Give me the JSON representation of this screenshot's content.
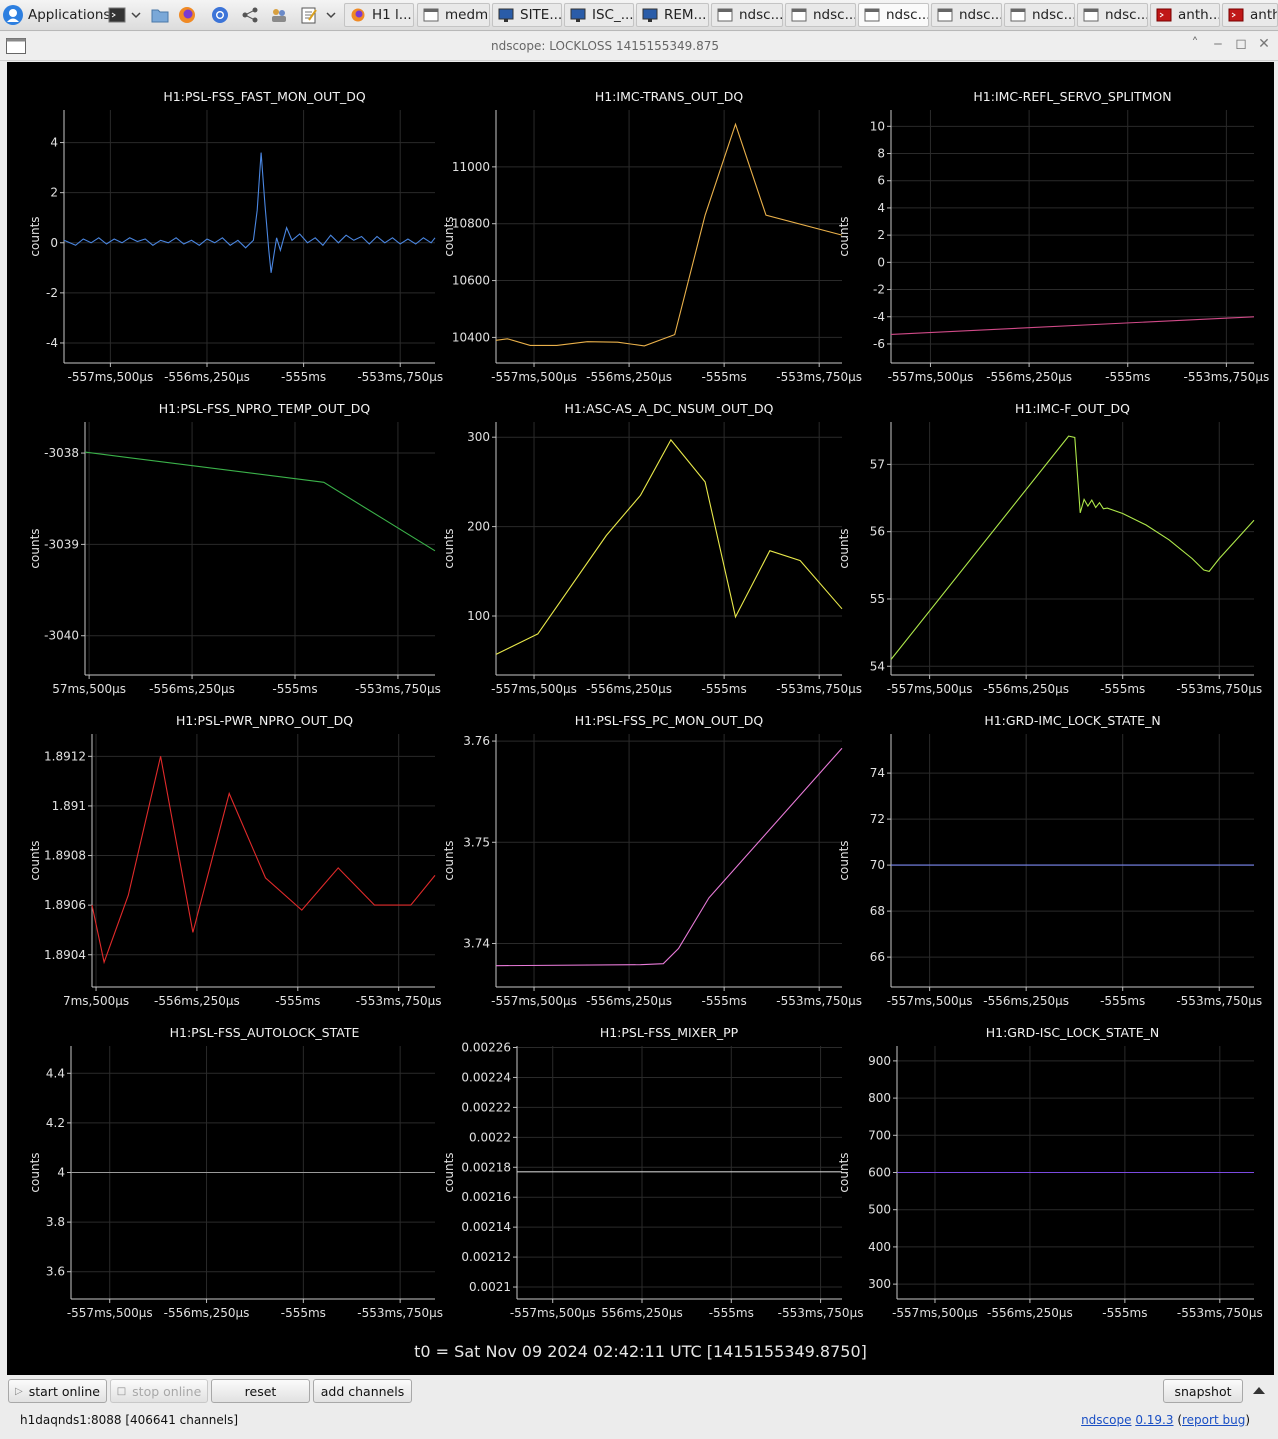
{
  "taskbar": {
    "applications_label": "Applications",
    "tasks": [
      {
        "label": "H1 l...",
        "icon": "firefox-icon",
        "active": false
      },
      {
        "label": "medm",
        "icon": "window-icon",
        "active": false
      },
      {
        "label": "SITE...",
        "icon": "monitor-icon",
        "active": false
      },
      {
        "label": "ISC_...",
        "icon": "monitor-icon",
        "active": false
      },
      {
        "label": "REM...",
        "icon": "monitor-icon",
        "active": false
      },
      {
        "label": "ndsc...",
        "icon": "window-icon",
        "active": false
      },
      {
        "label": "ndsc...",
        "icon": "window-icon",
        "active": false
      },
      {
        "label": "ndsc...",
        "icon": "window-icon",
        "active": true
      },
      {
        "label": "ndsc...",
        "icon": "window-icon",
        "active": false
      },
      {
        "label": "ndsc...",
        "icon": "window-icon",
        "active": false
      },
      {
        "label": "ndsc...",
        "icon": "window-icon",
        "active": false
      },
      {
        "label": "anth...",
        "icon": "terminal-icon",
        "active": false
      },
      {
        "label": "anth",
        "icon": "terminal-icon",
        "active": false
      }
    ]
  },
  "window": {
    "title": "ndscope: LOCKLOSS 1415155349.875"
  },
  "t0_label": "t0 = Sat Nov 09 2024 02:42:11 UTC [1415155349.8750]",
  "buttons": {
    "start_online": "start online",
    "stop_online": "stop online",
    "reset": "reset",
    "add_channels": "add channels",
    "snapshot": "snapshot"
  },
  "status": {
    "server": "h1daqnds1:8088  [406641 channels]"
  },
  "version": {
    "app": "ndscope",
    "number": "0.19.3",
    "report": "report bug"
  },
  "chart_data": [
    {
      "type": "line",
      "title": "H1:PSL-FSS_FAST_MON_OUT_DQ",
      "ylabel": "counts",
      "color": "#4a86e0",
      "xlim": [
        -558.1,
        -553.3
      ],
      "ylim": [
        -4.8,
        5.3
      ],
      "y_ticks": [
        4,
        2,
        0,
        -2,
        -4
      ],
      "y_tick_labels": [
        "4",
        "2",
        "0",
        "-2",
        "-4"
      ],
      "x_ticks": [
        -557.5,
        -556.25,
        -555.0,
        -553.75
      ],
      "x_tick_labels": [
        "-557ms,500μs",
        "-556ms,250μs",
        "-555ms",
        "-553ms,750μs"
      ],
      "series": [
        {
          "points": [
            [
              -558.1,
              0.1
            ],
            [
              -557.95,
              -0.1
            ],
            [
              -557.85,
              0.15
            ],
            [
              -557.75,
              0.0
            ],
            [
              -557.65,
              0.2
            ],
            [
              -557.55,
              -0.05
            ],
            [
              -557.45,
              0.15
            ],
            [
              -557.35,
              0.0
            ],
            [
              -557.25,
              0.2
            ],
            [
              -557.15,
              0.05
            ],
            [
              -557.05,
              0.15
            ],
            [
              -556.95,
              -0.1
            ],
            [
              -556.85,
              0.1
            ],
            [
              -556.75,
              0.0
            ],
            [
              -556.65,
              0.2
            ],
            [
              -556.55,
              -0.05
            ],
            [
              -556.45,
              0.1
            ],
            [
              -556.35,
              -0.1
            ],
            [
              -556.25,
              0.15
            ],
            [
              -556.15,
              0.0
            ],
            [
              -556.05,
              0.2
            ],
            [
              -555.95,
              -0.1
            ],
            [
              -555.85,
              0.1
            ],
            [
              -555.75,
              -0.2
            ],
            [
              -555.65,
              0.1
            ],
            [
              -555.6,
              1.3
            ],
            [
              -555.55,
              3.6
            ],
            [
              -555.5,
              1.5
            ],
            [
              -555.45,
              -0.3
            ],
            [
              -555.42,
              -1.2
            ],
            [
              -555.35,
              0.2
            ],
            [
              -555.3,
              -0.3
            ],
            [
              -555.22,
              0.6
            ],
            [
              -555.15,
              0.1
            ],
            [
              -555.05,
              0.35
            ],
            [
              -554.95,
              0.0
            ],
            [
              -554.85,
              0.2
            ],
            [
              -554.75,
              -0.1
            ],
            [
              -554.65,
              0.3
            ],
            [
              -554.55,
              0.0
            ],
            [
              -554.45,
              0.3
            ],
            [
              -554.35,
              0.1
            ],
            [
              -554.25,
              0.25
            ],
            [
              -554.15,
              -0.05
            ],
            [
              -554.05,
              0.25
            ],
            [
              -553.95,
              0.0
            ],
            [
              -553.85,
              0.2
            ],
            [
              -553.75,
              -0.05
            ],
            [
              -553.65,
              0.15
            ],
            [
              -553.55,
              -0.05
            ],
            [
              -553.45,
              0.2
            ],
            [
              -553.35,
              0.0
            ],
            [
              -553.3,
              0.2
            ]
          ]
        }
      ]
    },
    {
      "type": "line",
      "title": "H1:IMC-TRANS_OUT_DQ",
      "ylabel": "counts",
      "color": "#e9b04a",
      "xlim": [
        -558.0,
        -553.45
      ],
      "ylim": [
        10310,
        11200
      ],
      "y_ticks": [
        11000,
        10800,
        10600,
        10400
      ],
      "y_tick_labels": [
        "11000",
        "10800",
        "10600",
        "10400"
      ],
      "x_ticks": [
        -557.5,
        -556.25,
        -555.0,
        -553.75
      ],
      "x_tick_labels": [
        "-557ms,500μs",
        "-556ms,250μs",
        "-555ms",
        "-553ms,750μs"
      ],
      "series": [
        {
          "points": [
            [
              -558.0,
              10390
            ],
            [
              -557.85,
              10395
            ],
            [
              -557.55,
              10372
            ],
            [
              -557.2,
              10372
            ],
            [
              -556.8,
              10385
            ],
            [
              -556.4,
              10383
            ],
            [
              -556.05,
              10370
            ],
            [
              -555.65,
              10410
            ],
            [
              -555.25,
              10830
            ],
            [
              -554.85,
              11150
            ],
            [
              -554.45,
              10830
            ],
            [
              -553.45,
              10760
            ]
          ]
        }
      ]
    },
    {
      "type": "line",
      "title": "H1:IMC-REFL_SERVO_SPLITMON",
      "ylabel": "counts",
      "color": "#d04a88",
      "xlim": [
        -558.0,
        -553.4
      ],
      "ylim": [
        -7.4,
        11.2
      ],
      "y_ticks": [
        10,
        8,
        6,
        4,
        2,
        0,
        -2,
        -4,
        -6
      ],
      "y_tick_labels": [
        "10",
        "8",
        "6",
        "4",
        "2",
        "0",
        "-2",
        "-4",
        "-6"
      ],
      "x_ticks": [
        -557.5,
        -556.25,
        -555.0,
        -553.75
      ],
      "x_tick_labels": [
        "-557ms,500μs",
        "-556ms,250μs",
        "-555ms",
        "-553ms,750μs"
      ],
      "series": [
        {
          "points": [
            [
              -558.0,
              -5.3
            ],
            [
              -553.4,
              -4.0
            ]
          ]
        }
      ]
    },
    {
      "type": "line",
      "title": "H1:PSL-FSS_NPRO_TEMP_OUT_DQ",
      "ylabel": "counts",
      "color": "#3bb24a",
      "xlim": [
        -557.55,
        -553.3
      ],
      "ylim": [
        -3040.43,
        -3037.66
      ],
      "y_ticks": [
        -3038,
        -3039,
        -3040
      ],
      "y_tick_labels": [
        "-3038",
        "-3039",
        "-3040"
      ],
      "x_ticks": [
        -557.5,
        -556.25,
        -555.0,
        -553.75
      ],
      "x_tick_labels": [
        "57ms,500μs",
        "-556ms,250μs",
        "-555ms",
        "-553ms,750μs"
      ],
      "series": [
        {
          "points": [
            [
              -557.55,
              -3037.99
            ],
            [
              -554.65,
              -3038.32
            ],
            [
              -553.3,
              -3039.07
            ]
          ]
        }
      ]
    },
    {
      "type": "line",
      "title": "H1:ASC-AS_A_DC_NSUM_OUT_DQ",
      "ylabel": "counts",
      "color": "#e8e84a",
      "xlim": [
        -558.0,
        -553.45
      ],
      "ylim": [
        34,
        317
      ],
      "y_ticks": [
        300,
        200,
        100
      ],
      "y_tick_labels": [
        "300",
        "200",
        "100"
      ],
      "x_ticks": [
        -557.5,
        -556.25,
        -555.0,
        -553.75
      ],
      "x_tick_labels": [
        "-557ms,500μs",
        "-556ms,250μs",
        "-555ms",
        "-553ms,750μs"
      ],
      "series": [
        {
          "points": [
            [
              -558.0,
              57
            ],
            [
              -557.45,
              80
            ],
            [
              -556.55,
              190
            ],
            [
              -556.1,
              235
            ],
            [
              -555.7,
              297
            ],
            [
              -555.25,
              250
            ],
            [
              -554.85,
              99
            ],
            [
              -554.4,
              173
            ],
            [
              -554.0,
              162
            ],
            [
              -553.45,
              108
            ]
          ]
        }
      ]
    },
    {
      "type": "line",
      "title": "H1:IMC-F_OUT_DQ",
      "ylabel": "counts",
      "color": "#aee84a",
      "xlim": [
        -558.0,
        -553.3
      ],
      "ylim": [
        53.87,
        57.63
      ],
      "y_ticks": [
        57,
        56,
        55,
        54
      ],
      "y_tick_labels": [
        "57",
        "56",
        "55",
        "54"
      ],
      "x_ticks": [
        -557.5,
        -556.25,
        -555.0,
        -553.75
      ],
      "x_tick_labels": [
        "-557ms,500μs",
        "-556ms,250μs",
        "-555ms",
        "-553ms,750μs"
      ],
      "series": [
        {
          "points": [
            [
              -558.0,
              54.1
            ],
            [
              -555.7,
              57.42
            ],
            [
              -555.62,
              57.4
            ],
            [
              -555.55,
              56.28
            ],
            [
              -555.5,
              56.48
            ],
            [
              -555.45,
              56.38
            ],
            [
              -555.4,
              56.47
            ],
            [
              -555.35,
              56.36
            ],
            [
              -555.3,
              56.43
            ],
            [
              -555.25,
              56.34
            ],
            [
              -555.2,
              56.35
            ],
            [
              -555.0,
              56.27
            ],
            [
              -554.7,
              56.1
            ],
            [
              -554.4,
              55.88
            ],
            [
              -554.1,
              55.6
            ],
            [
              -553.95,
              55.43
            ],
            [
              -553.88,
              55.41
            ],
            [
              -553.75,
              55.6
            ],
            [
              -553.3,
              56.17
            ]
          ]
        }
      ]
    },
    {
      "type": "line",
      "title": "H1:PSL-PWR_NPRO_OUT_DQ",
      "ylabel": "counts",
      "color": "#e02a2a",
      "xlim": [
        -557.55,
        -553.3
      ],
      "ylim": [
        1.89027,
        1.89129
      ],
      "y_ticks": [
        1.8912,
        1.891,
        1.8908,
        1.8906,
        1.8904
      ],
      "y_tick_labels": [
        "1.8912",
        "1.891",
        "1.8908",
        "1.8906",
        "1.8904"
      ],
      "x_ticks": [
        -557.5,
        -556.25,
        -555.0,
        -553.75
      ],
      "x_tick_labels": [
        "7ms,500μs",
        "-556ms,250μs",
        "-555ms",
        "-553ms,750μs"
      ],
      "series": [
        {
          "points": [
            [
              -557.55,
              1.8906
            ],
            [
              -557.4,
              1.89037
            ],
            [
              -557.1,
              1.89064
            ],
            [
              -556.7,
              1.8912
            ],
            [
              -556.3,
              1.89049
            ],
            [
              -555.85,
              1.89105
            ],
            [
              -555.4,
              1.89071
            ],
            [
              -554.95,
              1.89058
            ],
            [
              -554.5,
              1.89075
            ],
            [
              -554.05,
              1.8906
            ],
            [
              -553.6,
              1.8906
            ],
            [
              -553.3,
              1.89072
            ]
          ]
        }
      ]
    },
    {
      "type": "line",
      "title": "H1:PSL-FSS_PC_MON_OUT_DQ",
      "ylabel": "counts",
      "color": "#e87ad8",
      "xlim": [
        -558.0,
        -553.45
      ],
      "ylim": [
        3.7357,
        3.7607
      ],
      "y_ticks": [
        3.76,
        3.75,
        3.74
      ],
      "y_tick_labels": [
        "3.76",
        "3.75",
        "3.74"
      ],
      "x_ticks": [
        -557.5,
        -556.25,
        -555.0,
        -553.75
      ],
      "x_tick_labels": [
        "-557ms,500μs",
        "-556ms,250μs",
        "-555ms",
        "-553ms,750μs"
      ],
      "series": [
        {
          "points": [
            [
              -558.0,
              3.7378
            ],
            [
              -556.1,
              3.7379
            ],
            [
              -555.8,
              3.738
            ],
            [
              -555.6,
              3.7395
            ],
            [
              -555.2,
              3.7445
            ],
            [
              -553.45,
              3.7593
            ]
          ]
        }
      ]
    },
    {
      "type": "line",
      "title": "H1:GRD-IMC_LOCK_STATE_N",
      "ylabel": "counts",
      "color": "#7a88f0",
      "xlim": [
        -558.0,
        -553.3
      ],
      "ylim": [
        64.7,
        75.7
      ],
      "y_ticks": [
        74,
        72,
        70,
        68,
        66
      ],
      "y_tick_labels": [
        "74",
        "72",
        "70",
        "68",
        "66"
      ],
      "x_ticks": [
        -557.5,
        -556.25,
        -555.0,
        -553.75
      ],
      "x_tick_labels": [
        "-557ms,500μs",
        "-556ms,250μs",
        "-555ms",
        "-553ms,750μs"
      ],
      "series": [
        {
          "points": [
            [
              -558.0,
              70
            ],
            [
              -553.3,
              70
            ]
          ]
        }
      ]
    },
    {
      "type": "line",
      "title": "H1:PSL-FSS_AUTOLOCK_STATE",
      "ylabel": "counts",
      "color": "#9a9a9a",
      "xlim": [
        -558.0,
        -553.3
      ],
      "ylim": [
        3.49,
        4.51
      ],
      "y_ticks": [
        4.4,
        4.2,
        4.0,
        3.8,
        3.6
      ],
      "y_tick_labels": [
        "4.4",
        "4.2",
        "4",
        "3.8",
        "3.6"
      ],
      "x_ticks": [
        -557.5,
        -556.25,
        -555.0,
        -553.75
      ],
      "x_tick_labels": [
        "-557ms,500μs",
        "-556ms,250μs",
        "-555ms",
        "-553ms,750μs"
      ],
      "series": [
        {
          "points": [
            [
              -558.0,
              4.0
            ],
            [
              -553.3,
              4.0
            ]
          ]
        }
      ]
    },
    {
      "type": "line",
      "title": "H1:PSL-FSS_MIXER_PP",
      "ylabel": "counts",
      "color": "#c8c8c8",
      "xlim": [
        -558.0,
        -553.45
      ],
      "ylim": [
        0.002092,
        0.002261
      ],
      "y_ticks": [
        0.00226,
        0.00224,
        0.00222,
        0.0022,
        0.00218,
        0.00216,
        0.00214,
        0.00212,
        0.0021
      ],
      "y_tick_labels": [
        "0.00226",
        "0.00224",
        "0.00222",
        "0.0022",
        "0.00218",
        "0.00216",
        "0.00214",
        "0.00212",
        "0.0021"
      ],
      "x_ticks": [
        -557.5,
        -556.25,
        -555.0,
        -553.75
      ],
      "x_tick_labels": [
        "-557ms,500μs",
        "556ms,250μs",
        "-555ms",
        "-553ms,750μs"
      ],
      "series": [
        {
          "points": [
            [
              -558.0,
              0.002177
            ],
            [
              -553.45,
              0.002177
            ]
          ]
        }
      ]
    },
    {
      "type": "line",
      "title": "H1:GRD-ISC_LOCK_STATE_N",
      "ylabel": "counts",
      "color": "#7a4ae0",
      "xlim": [
        -558.0,
        -553.3
      ],
      "ylim": [
        260,
        940
      ],
      "y_ticks": [
        900,
        800,
        700,
        600,
        500,
        400,
        300
      ],
      "y_tick_labels": [
        "900",
        "800",
        "700",
        "600",
        "500",
        "400",
        "300"
      ],
      "x_ticks": [
        -557.5,
        -556.25,
        -555.0,
        -553.75
      ],
      "x_tick_labels": [
        "-557ms,500μs",
        "-556ms,250μs",
        "-555ms",
        "-553ms,750μs"
      ],
      "series": [
        {
          "points": [
            [
              -558.0,
              600
            ],
            [
              -553.3,
              600
            ]
          ]
        }
      ]
    }
  ]
}
